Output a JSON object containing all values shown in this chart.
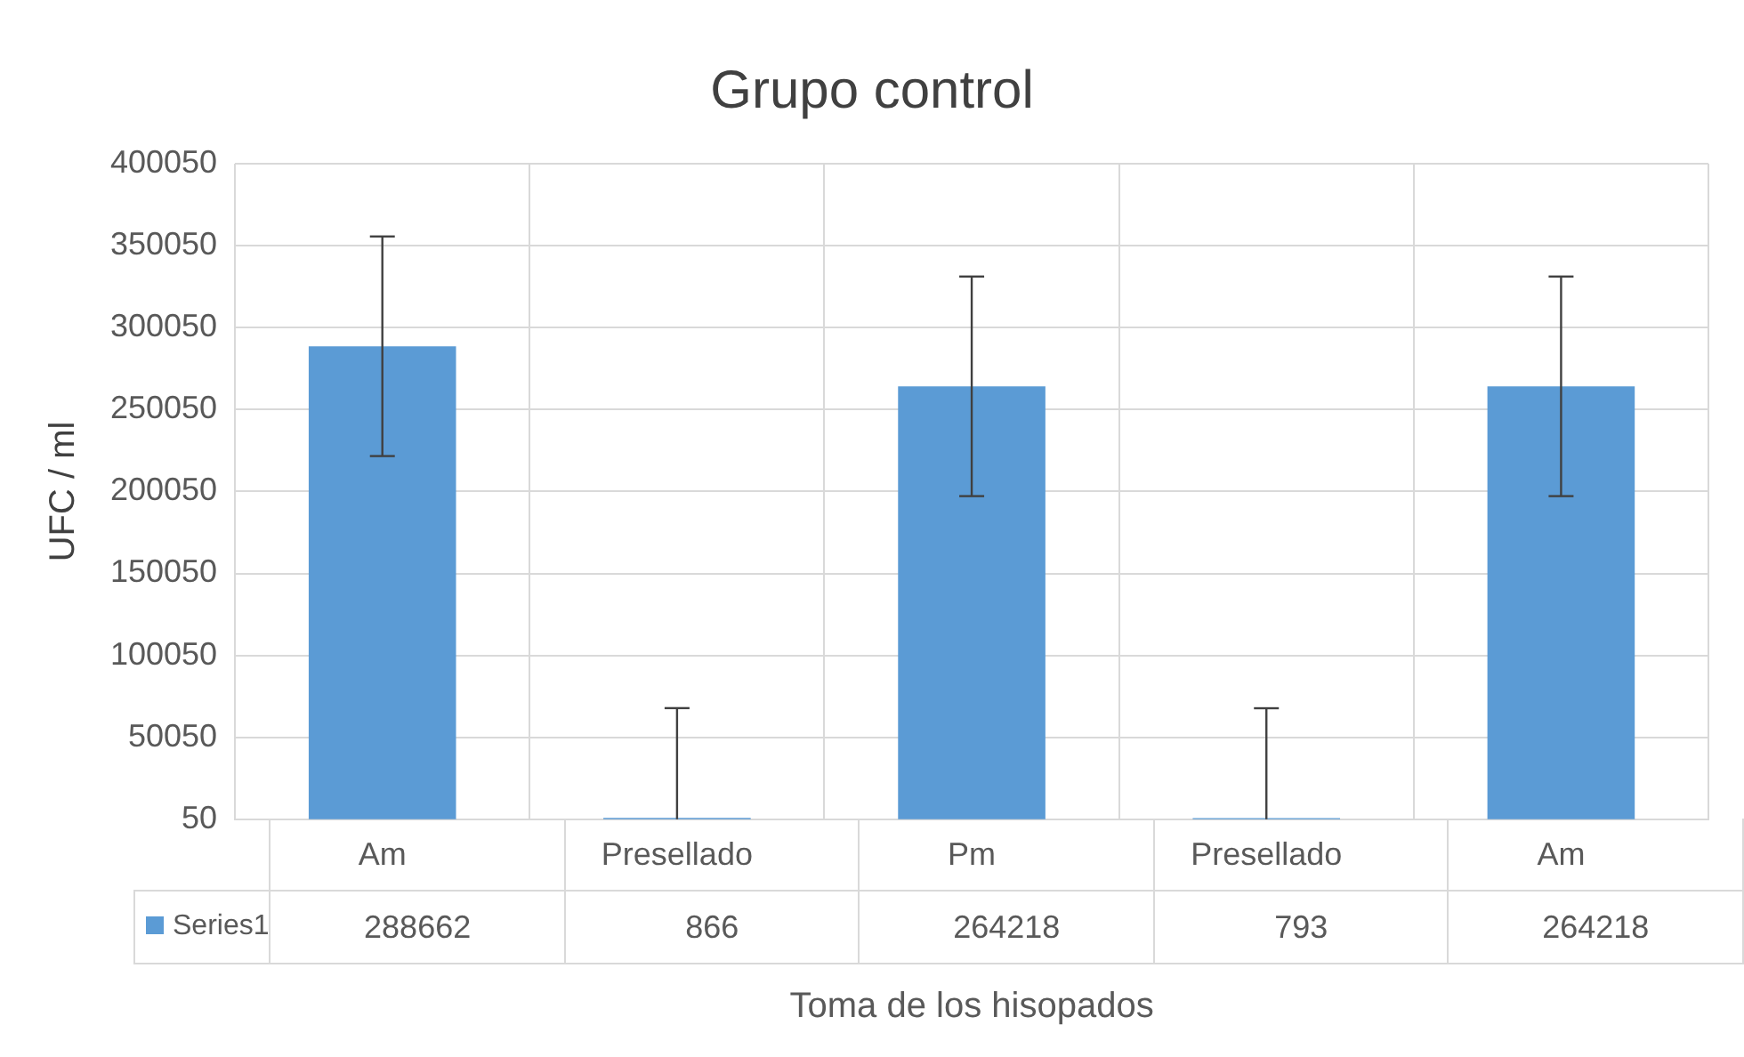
{
  "chart_data": {
    "type": "bar",
    "title": "Grupo control",
    "xlabel": "Toma de los hisopados",
    "ylabel": "UFC / ml",
    "categories": [
      "Am",
      "Presellado",
      "Pm",
      "Presellado",
      "Am"
    ],
    "series": [
      {
        "name": "Series1",
        "color": "#5b9bd5",
        "values": [
          288662,
          866,
          264218,
          793,
          264218
        ],
        "errors": [
          [
            221662,
            355662
          ],
          [
            50,
            67866
          ],
          [
            197218,
            331218
          ],
          [
            50,
            67793
          ],
          [
            197218,
            331218
          ]
        ]
      }
    ],
    "ylim": [
      50,
      400050
    ],
    "yticks": [
      50,
      50050,
      100050,
      150050,
      200050,
      250050,
      300050,
      350050,
      400050
    ],
    "grid": true,
    "data_labels": true
  }
}
